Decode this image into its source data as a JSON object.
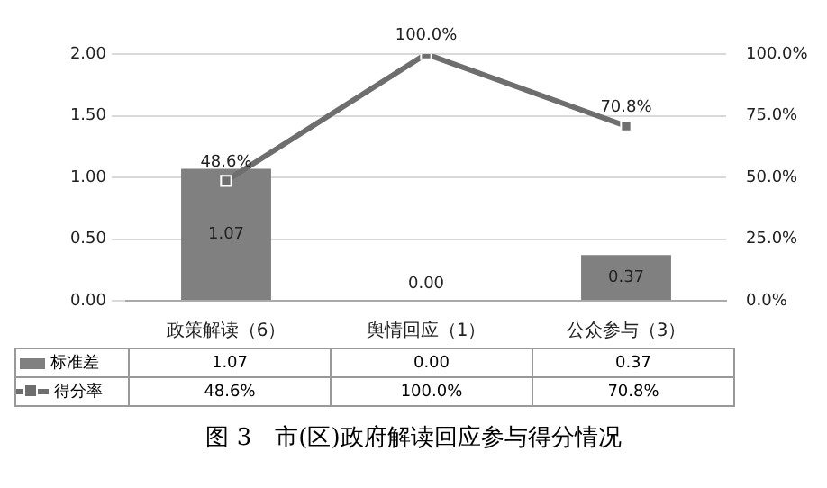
{
  "chart_data": {
    "type": "bar",
    "categories": [
      "政策解读（6）",
      "舆情回应（1）",
      "公众参与（3）"
    ],
    "series": [
      {
        "name": "标准差",
        "color": "#808080",
        "values": [
          1.07,
          0.0,
          0.37
        ],
        "value_labels": [
          "1.07",
          "0.00",
          "0.37"
        ]
      },
      {
        "name": "得分率",
        "type": "line",
        "axis": "y2",
        "color": "#6e6e6e",
        "marker": "square",
        "values": [
          48.6,
          100.0,
          70.8
        ],
        "value_labels": [
          "48.6%",
          "100.0%",
          "70.8%"
        ]
      }
    ],
    "ylim": [
      0,
      2
    ],
    "yticks": [
      {
        "value": 0,
        "label": "0.00"
      },
      {
        "value": 0.5,
        "label": "0.50"
      },
      {
        "value": 1,
        "label": "1.00"
      },
      {
        "value": 1.5,
        "label": "1.50"
      },
      {
        "value": 2,
        "label": "2.00"
      }
    ],
    "y2lim": [
      0,
      100
    ],
    "y2ticks": [
      {
        "value": 0,
        "label": "0.0%"
      },
      {
        "value": 25,
        "label": "25.0%"
      },
      {
        "value": 50,
        "label": "50.0%"
      },
      {
        "value": 75,
        "label": "75.0%"
      },
      {
        "value": 100,
        "label": "100.0%"
      }
    ],
    "grid": "y",
    "legend": "bottom",
    "annotations": [
      "图 3　市(区)政府解读回应参与得分情况"
    ]
  }
}
